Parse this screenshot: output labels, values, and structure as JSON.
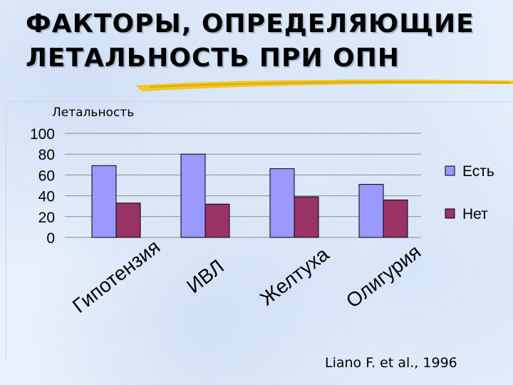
{
  "title_lines": [
    "ФАКТОРЫ, ОПРЕДЕЛЯЮЩИЕ",
    "ЛЕТАЛЬНОСТЬ ПРИ ОПН"
  ],
  "citation": "Liano F. et al., 1996",
  "colors": {
    "series_yes": "#9999ff",
    "series_no": "#993366",
    "underline": "#f2c200",
    "axis": "#000000"
  },
  "chart_data": {
    "type": "bar",
    "ylabel": "Летальность",
    "ylim": [
      0,
      100
    ],
    "yticks": [
      100,
      80,
      60,
      40,
      20,
      0
    ],
    "categories": [
      "Гипотензия",
      "ИВЛ",
      "Желтуха",
      "Олигурия"
    ],
    "series": [
      {
        "name": "Есть",
        "values": [
          69,
          80,
          66,
          51
        ]
      },
      {
        "name": "Нет",
        "values": [
          33,
          32,
          39,
          36
        ]
      }
    ],
    "grid": true,
    "legend": "right"
  }
}
